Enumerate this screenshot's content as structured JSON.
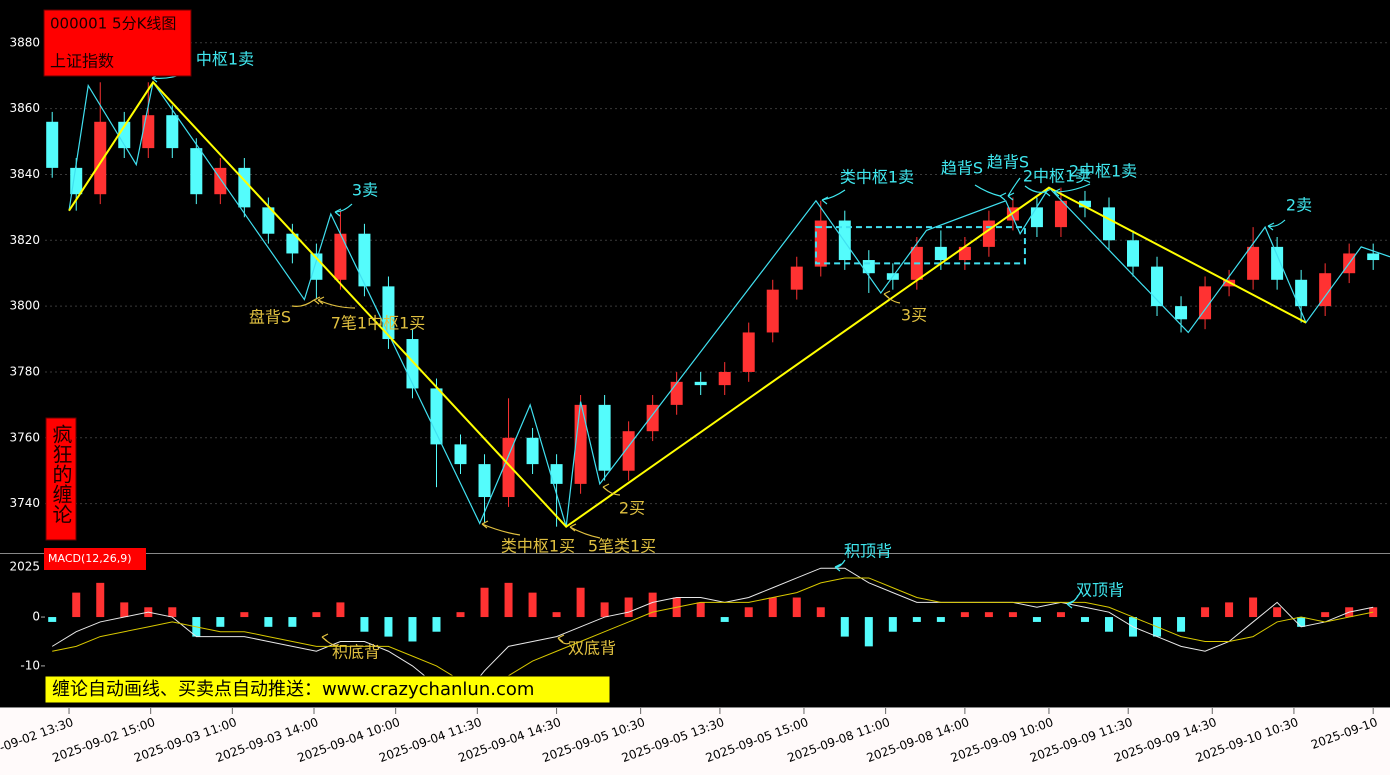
{
  "header": {
    "code_title": "000001 5分K线图",
    "index_name": "上证指数"
  },
  "side_label": "疯狂的缠论",
  "banner": "缠论自动画线、买卖点自动推送：www.crazychanlun.com",
  "chart_data": [
    {
      "type": "candlestick",
      "open": [
        3856,
        3842,
        3834,
        3856,
        3848,
        3858,
        3848,
        3834,
        3842,
        3830,
        3822,
        3816,
        3808,
        3822,
        3806,
        3790,
        3775,
        3758,
        3752,
        3742,
        3760,
        3752,
        3746,
        3770,
        3750,
        3762,
        3770,
        3777,
        3776,
        3780,
        3792,
        3805,
        3812,
        3826,
        3814,
        3810,
        3808,
        3818,
        3814,
        3818,
        3826,
        3830,
        3824,
        3832,
        3830,
        3820,
        3812,
        3800,
        3796,
        3806,
        3808,
        3818,
        3808,
        3800,
        3810,
        3816
      ],
      "high": [
        3859,
        3845,
        3868,
        3859,
        3868,
        3861,
        3851,
        3845,
        3845,
        3833,
        3825,
        3819,
        3829,
        3825,
        3809,
        3793,
        3778,
        3761,
        3755,
        3772,
        3763,
        3755,
        3773,
        3773,
        3765,
        3773,
        3780,
        3780,
        3783,
        3795,
        3808,
        3815,
        3832,
        3829,
        3817,
        3813,
        3821,
        3823,
        3821,
        3829,
        3833,
        3833,
        3836,
        3835,
        3833,
        3823,
        3815,
        3803,
        3809,
        3811,
        3824,
        3821,
        3811,
        3813,
        3819,
        3819
      ],
      "low": [
        3839,
        3829,
        3831,
        3845,
        3845,
        3845,
        3831,
        3831,
        3827,
        3819,
        3813,
        3802,
        3805,
        3803,
        3787,
        3772,
        3745,
        3749,
        3734,
        3739,
        3749,
        3733,
        3743,
        3747,
        3747,
        3759,
        3767,
        3773,
        3773,
        3777,
        3789,
        3802,
        3809,
        3811,
        3804,
        3805,
        3805,
        3811,
        3811,
        3815,
        3823,
        3821,
        3821,
        3827,
        3817,
        3809,
        3797,
        3792,
        3793,
        3803,
        3805,
        3805,
        3795,
        3797,
        3807,
        3811
      ],
      "close": [
        3842,
        3834,
        3856,
        3848,
        3858,
        3848,
        3834,
        3842,
        3830,
        3822,
        3816,
        3808,
        3822,
        3806,
        3790,
        3775,
        3758,
        3752,
        3742,
        3760,
        3752,
        3746,
        3770,
        3750,
        3762,
        3770,
        3777,
        3776,
        3780,
        3792,
        3805,
        3812,
        3826,
        3814,
        3810,
        3808,
        3818,
        3814,
        3818,
        3826,
        3830,
        3824,
        3832,
        3830,
        3820,
        3812,
        3800,
        3796,
        3806,
        3808,
        3818,
        3808,
        3800,
        3810,
        3816,
        3814
      ],
      "up_color": "#ff3232",
      "down_color": "#54fcfc",
      "bi": {
        "color": "#40e0f0",
        "x": [
          0.7,
          1.5,
          3.5,
          4.2,
          10.5,
          11.6,
          17.8,
          19.9,
          21.4,
          22.0,
          22.8,
          31.8,
          34.5,
          36.4,
          39.7,
          40.3,
          41.5,
          47.3,
          50.5,
          52.2,
          54.5,
          55.7
        ],
        "values": [
          3829,
          3867,
          3843,
          3868,
          3802,
          3828,
          3734,
          3770,
          3733,
          3771,
          3746,
          3832,
          3804,
          3823,
          3832,
          3822,
          3836,
          3792,
          3824,
          3795,
          3818,
          3815
        ]
      },
      "duan": {
        "color": "#ffff00",
        "x": [
          0.7,
          4.2,
          21.4,
          41.5,
          52.2
        ],
        "values": [
          3829,
          3868,
          3733,
          3836,
          3795
        ]
      },
      "zhongshu": {
        "color": "#40e0f0",
        "x": [
          31.8,
          40.5
        ],
        "values": [
          3813,
          3824
        ]
      },
      "xlim": [
        -0.3,
        55.7
      ],
      "ylim": [
        3725,
        3893
      ],
      "yticks": [
        3740,
        3760,
        3780,
        3800,
        3820,
        3840,
        3860,
        3880
      ],
      "grid": true,
      "xticks": [
        {
          "value": 0.7,
          "label": "2025-09-02 13:30"
        },
        {
          "value": 4.1,
          "label": "2025-09-02 15:00"
        },
        {
          "value": 7.5,
          "label": "2025-09-03 11:00"
        },
        {
          "value": 10.9,
          "label": "2025-09-03 14:00"
        },
        {
          "value": 14.3,
          "label": "2025-09-04 10:00"
        },
        {
          "value": 17.7,
          "label": "2025-09-04 11:30"
        },
        {
          "value": 21.0,
          "label": "2025-09-04 14:30"
        },
        {
          "value": 24.5,
          "label": "2025-09-05 10:30"
        },
        {
          "value": 27.8,
          "label": "2025-09-05 13:30"
        },
        {
          "value": 31.3,
          "label": "2025-09-05 15:00"
        },
        {
          "value": 34.7,
          "label": "2025-09-08 11:00"
        },
        {
          "value": 38.0,
          "label": "2025-09-08 14:00"
        },
        {
          "value": 41.5,
          "label": "2025-09-09 10:00"
        },
        {
          "value": 44.8,
          "label": "2025-09-09 11:30"
        },
        {
          "value": 48.3,
          "label": "2025-09-09 14:30"
        },
        {
          "value": 51.7,
          "label": "2025-09-10 10:30"
        },
        {
          "value": 55.0,
          "label": "2025-09-10"
        }
      ],
      "annotations": [
        {
          "text": "中枢1卖",
          "color": "#40e8f0"
        },
        {
          "text": "3卖",
          "color": "#40e8f0"
        },
        {
          "text": "盘背S",
          "color": "#e0c040"
        },
        {
          "text": "7笔1中枢1买",
          "color": "#e0c040"
        },
        {
          "text": "类中枢1买",
          "color": "#e0c040"
        },
        {
          "text": "5笔类1买",
          "color": "#e0c040"
        },
        {
          "text": "2买",
          "color": "#e0c040"
        },
        {
          "text": "类中枢1卖",
          "color": "#40e8f0"
        },
        {
          "text": "趋背S",
          "color": "#40e8f0"
        },
        {
          "text": "趋背S",
          "color": "#40e8f0"
        },
        {
          "text": "2中枢1卖",
          "color": "#40e8f0"
        },
        {
          "text": "2中枢1卖",
          "color": "#40e8f0"
        },
        {
          "text": "3买",
          "color": "#e0c040"
        },
        {
          "text": "2卖",
          "color": "#40e8f0"
        }
      ]
    },
    {
      "type": "macd",
      "title": "MACD(12,26,9)",
      "axis_top_label": "2025",
      "histogram": [
        -1,
        5,
        7,
        3,
        2,
        2,
        -4,
        -2,
        1,
        -2,
        -2,
        1,
        3,
        -3,
        -4,
        -5,
        -3,
        1,
        6,
        7,
        5,
        1,
        6,
        3,
        4,
        5,
        4,
        3,
        -1,
        2,
        4,
        4,
        2,
        -4,
        -6,
        -3,
        -1,
        -1,
        1,
        1,
        1,
        -1,
        1,
        -1,
        -3,
        -4,
        -4,
        -3,
        2,
        3,
        4,
        2,
        -2,
        1,
        2,
        2
      ],
      "dif": [
        -6,
        -3,
        -1,
        0,
        1,
        0,
        -4,
        -4,
        -4,
        -5,
        -6,
        -7,
        -5,
        -5,
        -7,
        -10,
        -14,
        -17,
        -11,
        -6,
        -5,
        -4,
        -2,
        0,
        1,
        3,
        4,
        4,
        3,
        4,
        6,
        8,
        10,
        10,
        7,
        5,
        3,
        3,
        3,
        3,
        3,
        2,
        3,
        2,
        1,
        -2,
        -4,
        -6,
        -7,
        -5,
        -1,
        3,
        -2,
        -1,
        1,
        2
      ],
      "dea": [
        -7,
        -6,
        -4,
        -3,
        -2,
        -1,
        -2,
        -3,
        -3,
        -4,
        -5,
        -6,
        -6,
        -6,
        -6,
        -8,
        -10,
        -13,
        -14,
        -12,
        -9,
        -7,
        -5,
        -3,
        -1,
        1,
        2,
        3,
        3,
        3,
        4,
        5,
        7,
        8,
        8,
        6,
        4,
        3,
        3,
        3,
        3,
        3,
        3,
        3,
        2,
        0,
        -2,
        -4,
        -5,
        -5,
        -4,
        -1,
        0,
        -1,
        0,
        1
      ],
      "up_color": "#ff3232",
      "down_color": "#54fcfc",
      "dif_color": "#e8e8e8",
      "dea_color": "#d8c800",
      "ylim": [
        -18,
        12.7
      ],
      "yticks": [
        0,
        -10
      ],
      "annotations": [
        {
          "text": "积顶背",
          "color": "#40e8f0"
        },
        {
          "text": "双顶背",
          "color": "#40e8f0"
        },
        {
          "text": "积底背",
          "color": "#e0c040"
        },
        {
          "text": "双底背",
          "color": "#e0c040"
        }
      ]
    }
  ]
}
